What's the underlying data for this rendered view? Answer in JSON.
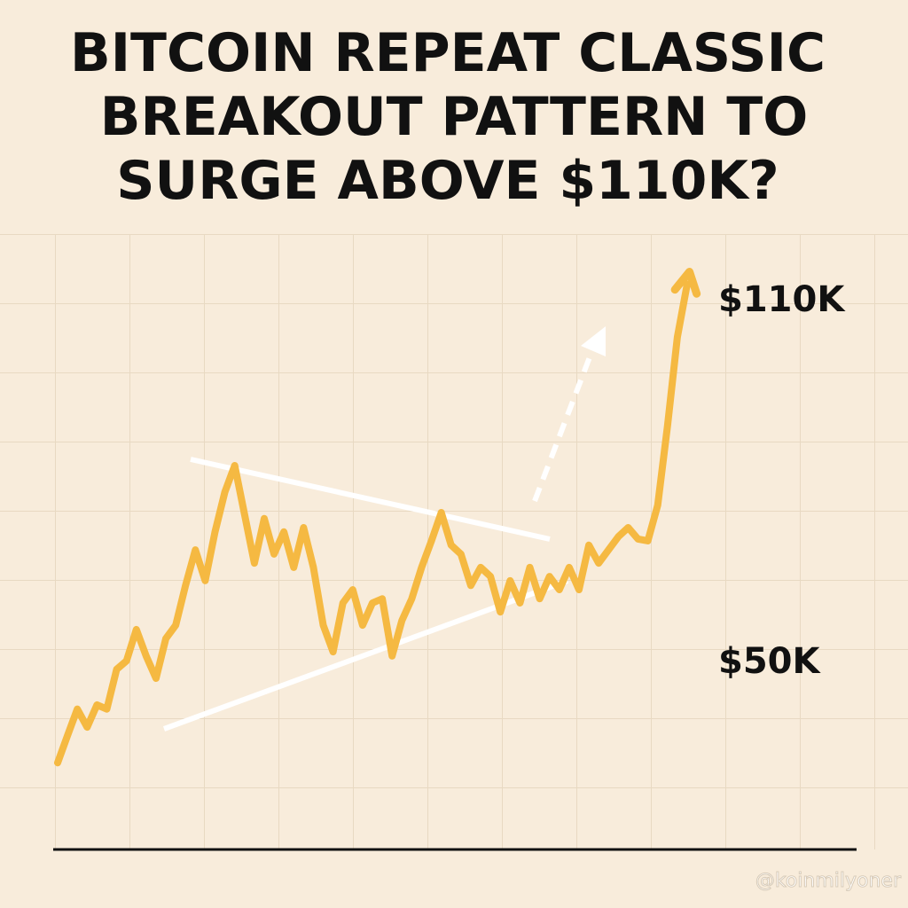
{
  "chart_data": {
    "type": "line",
    "title": [
      "BITCOIN REPEAT CLASSIC",
      "BREAKOUT PATTERN TO",
      "SURGE ABOVE $110K?"
    ],
    "values": [
      33500,
      38000,
      42400,
      39400,
      43100,
      42400,
      49000,
      50400,
      55600,
      51200,
      47500,
      54100,
      56300,
      62900,
      68800,
      63700,
      71800,
      78400,
      82800,
      74700,
      66600,
      74000,
      68100,
      71800,
      65900,
      72500,
      65900,
      56300,
      51900,
      60000,
      62200,
      56300,
      60000,
      60700,
      51200,
      57100,
      60700,
      65900,
      70300,
      75000,
      69600,
      68100,
      62900,
      65900,
      64400,
      58500,
      63700,
      60000,
      65900,
      60700,
      64400,
      62200,
      65900,
      62200,
      69600,
      66600,
      68800,
      71000,
      72500,
      70600,
      70300,
      76200,
      89400,
      104100,
      112900
    ],
    "color": "#f5b942",
    "ylim": [
      20000,
      120000
    ],
    "yticks": [
      {
        "value": 110000,
        "label": "$110K"
      },
      {
        "value": 50000,
        "label": "$50K"
      }
    ],
    "watermark": "@koinmilyoner"
  }
}
